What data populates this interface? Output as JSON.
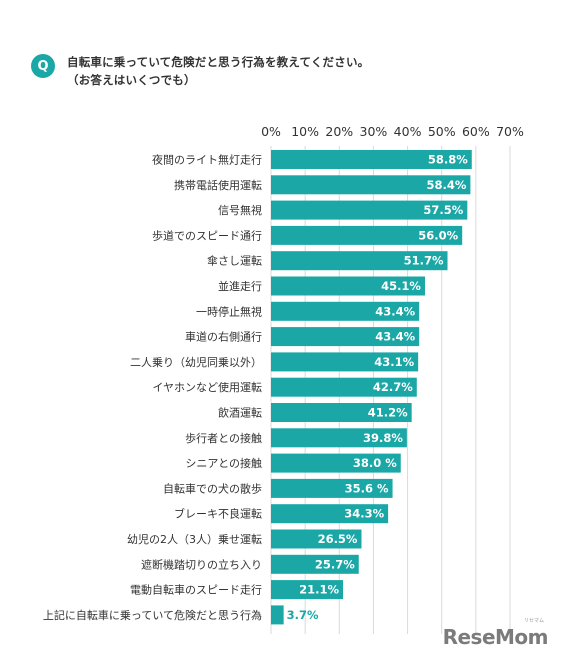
{
  "question": {
    "badge": "Q",
    "line1": "自転車に乗っていて危険だと思う行為を教えてください。",
    "line2": "（お答えはいくつでも）"
  },
  "chart_data": {
    "type": "bar",
    "orientation": "horizontal",
    "xlim": [
      0,
      70
    ],
    "x_ticks": [
      "0%",
      "10%",
      "20%",
      "30%",
      "40%",
      "50%",
      "60%",
      "70%"
    ],
    "grid": true,
    "bar_color": "#1aa7a6",
    "categories": [
      "夜間のライト無灯走行",
      "携帯電話使用運転",
      "信号無視",
      "歩道でのスピード通行",
      "傘さし運転",
      "並進走行",
      "一時停止無視",
      "車道の右側通行",
      "二人乗り（幼児同乗以外）",
      "イヤホンなど使用運転",
      "飲酒運転",
      "歩行者との接触",
      "シニアとの接触",
      "自転車での犬の散歩",
      "ブレーキ不良運転",
      "幼児の2人（3人）乗せ運転",
      "遮断機踏切りの立ち入り",
      "電動自転車のスピード走行",
      "上記に自転車に乗っていて危険だと思う行為"
    ],
    "values": [
      58.8,
      58.4,
      57.5,
      56.0,
      51.7,
      45.1,
      43.4,
      43.4,
      43.1,
      42.7,
      41.2,
      39.8,
      38.0,
      35.6,
      34.3,
      26.5,
      25.7,
      21.1,
      3.7
    ],
    "value_labels": [
      "58.8%",
      "58.4%",
      "57.5%",
      "56.0%",
      "51.7%",
      "45.1%",
      "43.4%",
      "43.4%",
      "43.1%",
      "42.7%",
      "41.2%",
      "39.8%",
      "38.0 %",
      "35.6 %",
      "34.3%",
      "26.5%",
      "25.7%",
      "21.1%",
      "3.7%"
    ]
  },
  "watermark": {
    "text": "ReseMom",
    "sub": "リセマム"
  },
  "colors": {
    "accent": "#1aa7a6",
    "grid": "#d9d9d9",
    "text": "#333333"
  }
}
